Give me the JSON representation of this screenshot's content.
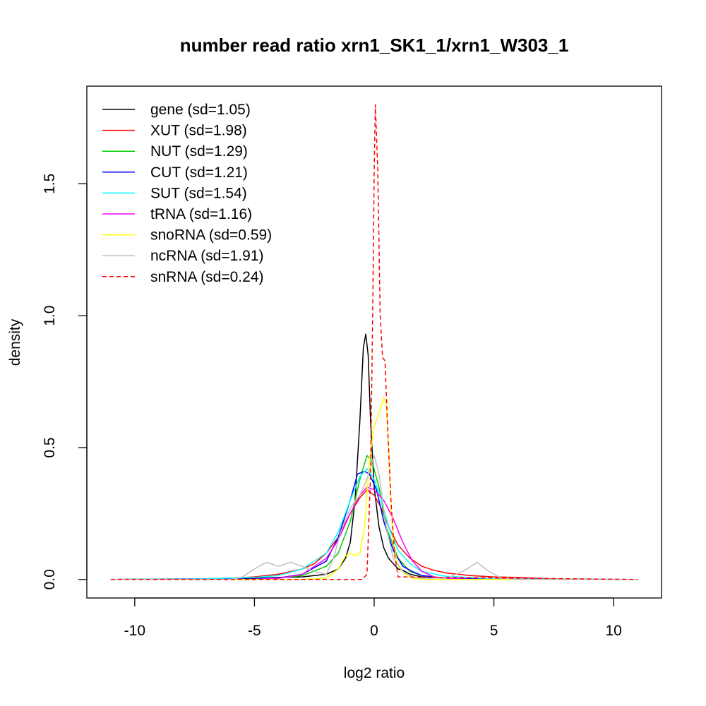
{
  "chart_data": {
    "type": "line",
    "title": "number read ratio xrn1_SK1_1/xrn1_W303_1",
    "xlabel": "log2 ratio",
    "ylabel": "density",
    "xlim": [
      -12,
      12
    ],
    "ylim": [
      -0.07,
      1.87
    ],
    "xticks": [
      -10,
      -5,
      0,
      5,
      10
    ],
    "xtick_labels": [
      "-10",
      "-5",
      "0",
      "5",
      "10"
    ],
    "yticks": [
      0.0,
      0.5,
      1.0,
      1.5
    ],
    "ytick_labels": [
      "0.0",
      "0.5",
      "1.0",
      "1.5"
    ],
    "grid": false,
    "legend_position": "top-left",
    "series": [
      {
        "name": "gene (sd=1.05)",
        "color": "#000000",
        "dash": "solid",
        "points": [
          [
            -11,
            0
          ],
          [
            -6,
            0.001
          ],
          [
            -5,
            0.004
          ],
          [
            -4,
            0.008
          ],
          [
            -3,
            0.01
          ],
          [
            -2,
            0.02
          ],
          [
            -1.5,
            0.04
          ],
          [
            -1.2,
            0.08
          ],
          [
            -1,
            0.14
          ],
          [
            -0.8,
            0.3
          ],
          [
            -0.6,
            0.6
          ],
          [
            -0.45,
            0.88
          ],
          [
            -0.35,
            0.93
          ],
          [
            -0.25,
            0.85
          ],
          [
            -0.15,
            0.6
          ],
          [
            0,
            0.35
          ],
          [
            0.2,
            0.2
          ],
          [
            0.4,
            0.12
          ],
          [
            0.6,
            0.08
          ],
          [
            0.8,
            0.06
          ],
          [
            1,
            0.04
          ],
          [
            1.2,
            0.035
          ],
          [
            1.5,
            0.02
          ],
          [
            2,
            0.01
          ],
          [
            3,
            0.004
          ],
          [
            5,
            0.001
          ],
          [
            11,
            0
          ]
        ]
      },
      {
        "name": "XUT (sd=1.98)",
        "color": "#ff0000",
        "dash": "solid",
        "points": [
          [
            -11,
            0
          ],
          [
            -9,
            0.002
          ],
          [
            -7,
            0.003
          ],
          [
            -6,
            0.005
          ],
          [
            -5,
            0.01
          ],
          [
            -4.5,
            0.015
          ],
          [
            -4,
            0.02
          ],
          [
            -3.5,
            0.03
          ],
          [
            -3,
            0.04
          ],
          [
            -2.5,
            0.06
          ],
          [
            -2,
            0.1
          ],
          [
            -1.5,
            0.16
          ],
          [
            -1,
            0.25
          ],
          [
            -0.6,
            0.31
          ],
          [
            -0.3,
            0.34
          ],
          [
            0,
            0.32
          ],
          [
            0.3,
            0.27
          ],
          [
            0.6,
            0.2
          ],
          [
            1,
            0.13
          ],
          [
            1.5,
            0.08
          ],
          [
            2,
            0.05
          ],
          [
            2.5,
            0.035
          ],
          [
            3,
            0.025
          ],
          [
            4,
            0.015
          ],
          [
            5,
            0.01
          ],
          [
            6,
            0.008
          ],
          [
            7,
            0.004
          ],
          [
            8,
            0.001
          ],
          [
            11,
            0
          ]
        ]
      },
      {
        "name": "NUT (sd=1.29)",
        "color": "#00cd00",
        "dash": "solid",
        "points": [
          [
            -11,
            0
          ],
          [
            -5,
            0.002
          ],
          [
            -4,
            0.006
          ],
          [
            -3,
            0.015
          ],
          [
            -2,
            0.05
          ],
          [
            -1.5,
            0.1
          ],
          [
            -1,
            0.22
          ],
          [
            -0.6,
            0.38
          ],
          [
            -0.3,
            0.47
          ],
          [
            -0.1,
            0.45
          ],
          [
            0.2,
            0.35
          ],
          [
            0.5,
            0.2
          ],
          [
            1,
            0.08
          ],
          [
            1.5,
            0.03
          ],
          [
            2,
            0.015
          ],
          [
            3,
            0.005
          ],
          [
            5,
            0.001
          ],
          [
            11,
            0
          ]
        ]
      },
      {
        "name": "CUT (sd=1.21)",
        "color": "#0000ff",
        "dash": "solid",
        "points": [
          [
            -11,
            0
          ],
          [
            -5,
            0.002
          ],
          [
            -4,
            0.006
          ],
          [
            -3,
            0.02
          ],
          [
            -2,
            0.07
          ],
          [
            -1.5,
            0.16
          ],
          [
            -1,
            0.3
          ],
          [
            -0.7,
            0.4
          ],
          [
            -0.4,
            0.41
          ],
          [
            -0.2,
            0.4
          ],
          [
            0.1,
            0.34
          ],
          [
            0.4,
            0.22
          ],
          [
            0.8,
            0.11
          ],
          [
            1.2,
            0.05
          ],
          [
            1.6,
            0.03
          ],
          [
            2,
            0.015
          ],
          [
            3,
            0.005
          ],
          [
            5,
            0.001
          ],
          [
            11,
            0
          ]
        ]
      },
      {
        "name": "SUT (sd=1.54)",
        "color": "#00ffff",
        "dash": "solid",
        "points": [
          [
            -11,
            0
          ],
          [
            -7,
            0.003
          ],
          [
            -5,
            0.008
          ],
          [
            -4,
            0.015
          ],
          [
            -3,
            0.04
          ],
          [
            -2,
            0.1
          ],
          [
            -1.5,
            0.18
          ],
          [
            -1,
            0.3
          ],
          [
            -0.6,
            0.39
          ],
          [
            -0.3,
            0.42
          ],
          [
            0,
            0.38
          ],
          [
            0.3,
            0.3
          ],
          [
            0.6,
            0.2
          ],
          [
            1,
            0.11
          ],
          [
            1.5,
            0.06
          ],
          [
            2,
            0.03
          ],
          [
            3,
            0.012
          ],
          [
            5,
            0.003
          ],
          [
            11,
            0
          ]
        ]
      },
      {
        "name": "tRNA (sd=1.16)",
        "color": "#ff00ff",
        "dash": "solid",
        "points": [
          [
            -11,
            0
          ],
          [
            -5,
            0.001
          ],
          [
            -4,
            0.004
          ],
          [
            -3,
            0.02
          ],
          [
            -2,
            0.08
          ],
          [
            -1.5,
            0.15
          ],
          [
            -1,
            0.25
          ],
          [
            -0.6,
            0.32
          ],
          [
            -0.3,
            0.35
          ],
          [
            0,
            0.34
          ],
          [
            0.4,
            0.3
          ],
          [
            0.8,
            0.23
          ],
          [
            1.2,
            0.14
          ],
          [
            1.6,
            0.07
          ],
          [
            2,
            0.03
          ],
          [
            2.5,
            0.01
          ],
          [
            3,
            0.004
          ],
          [
            4,
            0.001
          ],
          [
            11,
            0
          ]
        ]
      },
      {
        "name": "snoRNA (sd=0.59)",
        "color": "#ffff00",
        "dash": "solid",
        "points": [
          [
            -11,
            0
          ],
          [
            -3,
            0
          ],
          [
            -2,
            0.005
          ],
          [
            -1.5,
            0.04
          ],
          [
            -1.2,
            0.09
          ],
          [
            -1,
            0.1
          ],
          [
            -0.8,
            0.09
          ],
          [
            -0.6,
            0.1
          ],
          [
            -0.4,
            0.2
          ],
          [
            -0.2,
            0.45
          ],
          [
            0,
            0.58
          ],
          [
            0.2,
            0.63
          ],
          [
            0.4,
            0.69
          ],
          [
            0.5,
            0.67
          ],
          [
            0.6,
            0.5
          ],
          [
            0.7,
            0.3
          ],
          [
            0.8,
            0.14
          ],
          [
            1,
            0.05
          ],
          [
            1.3,
            0.02
          ],
          [
            1.6,
            0.005
          ],
          [
            2,
            0
          ],
          [
            11,
            0
          ]
        ]
      },
      {
        "name": "ncRNA (sd=1.91)",
        "color": "#bebebe",
        "dash": "solid",
        "points": [
          [
            -11,
            0
          ],
          [
            -6,
            0
          ],
          [
            -5.5,
            0.01
          ],
          [
            -5,
            0.04
          ],
          [
            -4.5,
            0.065
          ],
          [
            -4,
            0.05
          ],
          [
            -3.5,
            0.065
          ],
          [
            -3,
            0.05
          ],
          [
            -2.5,
            0.03
          ],
          [
            -2,
            0.02
          ],
          [
            -1.7,
            0.08
          ],
          [
            -1.4,
            0.18
          ],
          [
            -1,
            0.27
          ],
          [
            -0.6,
            0.32
          ],
          [
            -0.3,
            0.38
          ],
          [
            0,
            0.47
          ],
          [
            0.2,
            0.4
          ],
          [
            0.5,
            0.2
          ],
          [
            0.8,
            0.08
          ],
          [
            1.2,
            0.03
          ],
          [
            1.6,
            0.01
          ],
          [
            2,
            0.005
          ],
          [
            3,
            0.005
          ],
          [
            3.7,
            0.03
          ],
          [
            4.3,
            0.065
          ],
          [
            4.8,
            0.03
          ],
          [
            5.3,
            0.005
          ],
          [
            6,
            0
          ],
          [
            11,
            0
          ]
        ]
      },
      {
        "name": "snRNA (sd=0.24)",
        "color": "#ff0000",
        "dash": "dashed",
        "points": [
          [
            -11,
            0
          ],
          [
            -0.5,
            0
          ],
          [
            -0.3,
            0.02
          ],
          [
            -0.15,
            0.4
          ],
          [
            -0.05,
            1.1
          ],
          [
            0,
            1.55
          ],
          [
            0.05,
            1.8
          ],
          [
            0.15,
            1.55
          ],
          [
            0.25,
            1.0
          ],
          [
            0.35,
            0.84
          ],
          [
            0.45,
            0.83
          ],
          [
            0.55,
            0.6
          ],
          [
            0.7,
            0.3
          ],
          [
            0.85,
            0.1
          ],
          [
            1,
            0.01
          ],
          [
            11,
            0
          ]
        ]
      }
    ]
  }
}
